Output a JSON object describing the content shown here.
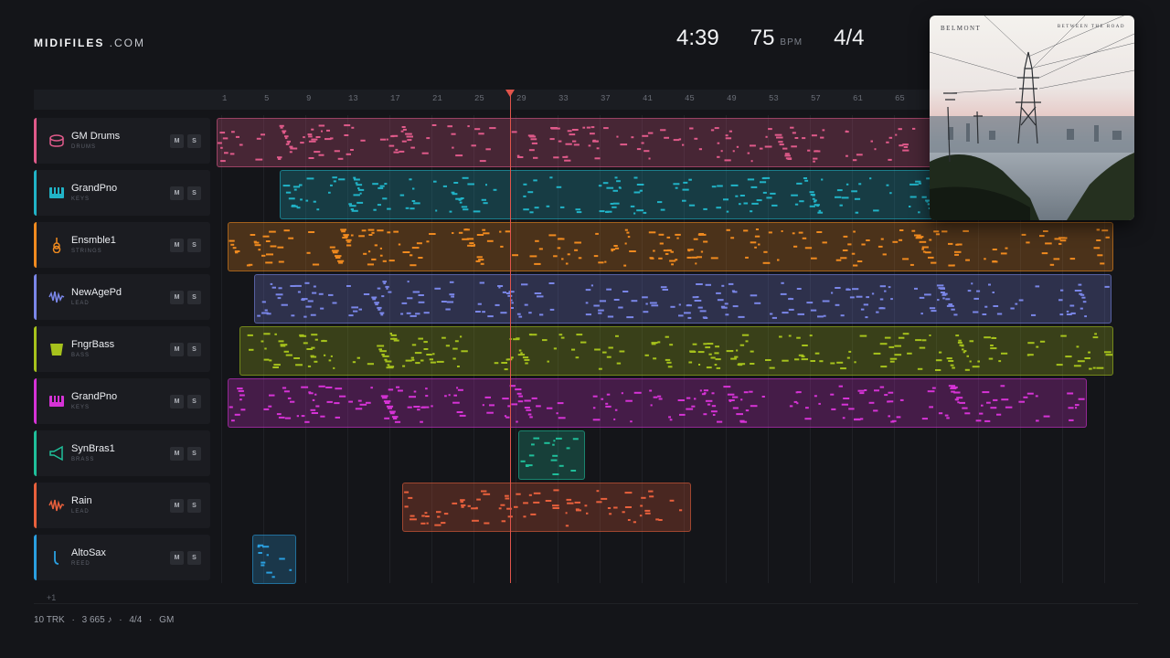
{
  "brand": {
    "bold": "MIDIFILES",
    "light": " .COM"
  },
  "transport": {
    "time": "4:39",
    "tempo": "75",
    "tempo_unit": "BPM",
    "signature": "4/4"
  },
  "ruler": [
    "1",
    "5",
    "9",
    "13",
    "17",
    "21",
    "25",
    "29",
    "33",
    "37",
    "41",
    "45",
    "49",
    "53",
    "57",
    "61",
    "65"
  ],
  "playhead": {
    "bar": "27"
  },
  "tracks": [
    {
      "name": "GM Drums",
      "category": "DRUMS",
      "color": "#e05a8a",
      "icon": "drum-icon"
    },
    {
      "name": "GrandPno",
      "category": "KEYS",
      "color": "#21b3c7",
      "icon": "piano-keys-icon"
    },
    {
      "name": "Ensmble1",
      "category": "STRINGS",
      "color": "#f08a1f",
      "icon": "violin-icon"
    },
    {
      "name": "NewAgePd",
      "category": "LEAD",
      "color": "#7a86e8",
      "icon": "waveform-icon"
    },
    {
      "name": "FngrBass",
      "category": "BASS",
      "color": "#a6c21c",
      "icon": "bass-amp-icon"
    },
    {
      "name": "GrandPno",
      "category": "KEYS",
      "color": "#d633d6",
      "icon": "piano-keys-icon"
    },
    {
      "name": "SynBras1",
      "category": "BRASS",
      "color": "#1fbf9a",
      "icon": "horn-icon"
    },
    {
      "name": "Rain",
      "category": "LEAD",
      "color": "#e8603c",
      "icon": "waveform-icon"
    },
    {
      "name": "AltoSax",
      "category": "REED",
      "color": "#2a9fe0",
      "icon": "saxophone-icon"
    }
  ],
  "buttons": {
    "mute": "M",
    "solo": "S"
  },
  "more_tracks": "+1",
  "status": {
    "tracks": "10 TRK",
    "notes": "3 665 ♪",
    "signature": "4/4",
    "standard": "GM",
    "sep": "·"
  },
  "album": {
    "title": "BELMONT",
    "subtitle": "BETWEEN THE ROAD",
    "artwork": "power-lines-cityscape-photo"
  }
}
